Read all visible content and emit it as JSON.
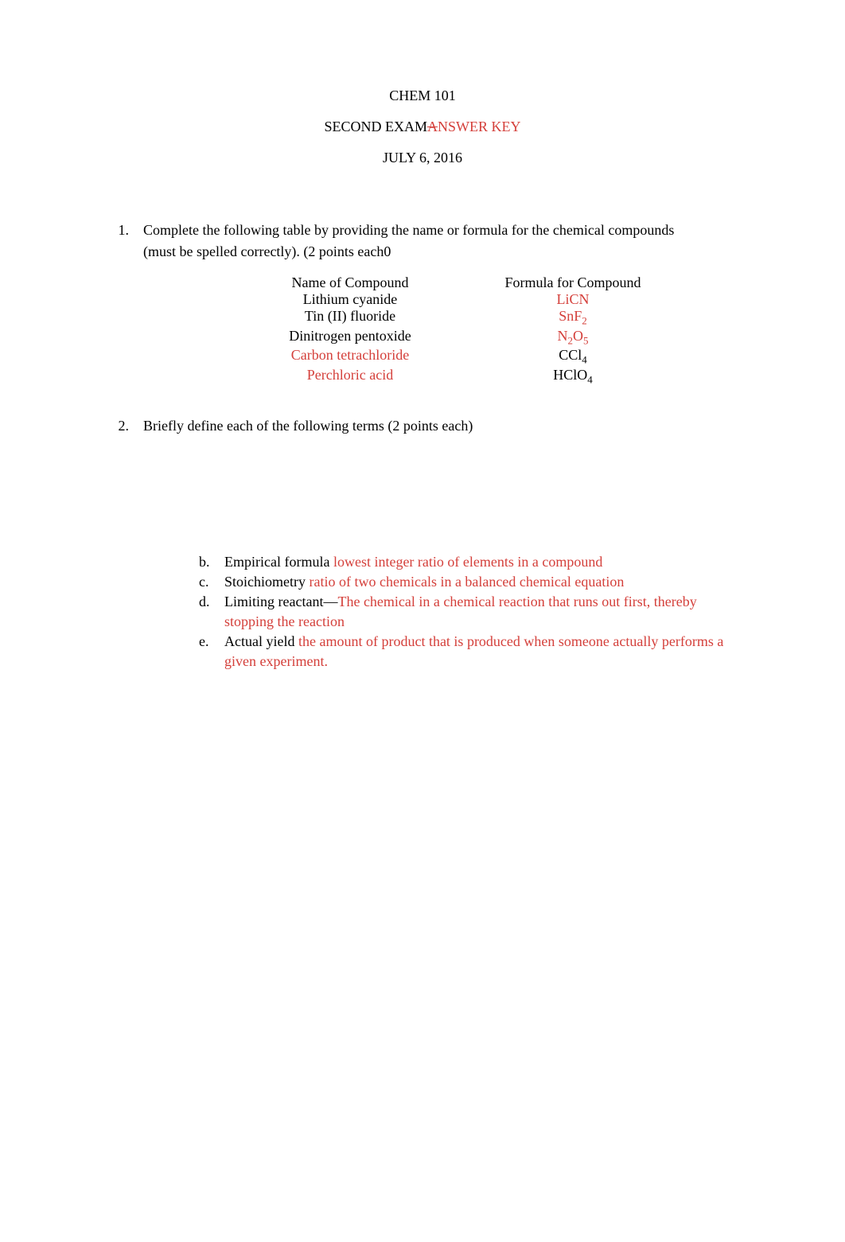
{
  "colors": {
    "text_black": "#000000",
    "text_red": "#d43f3a",
    "background": "#ffffff"
  },
  "typography": {
    "font_family": "Times New Roman",
    "font_size_pt": 13
  },
  "header": {
    "line1": "CHEM 101",
    "line2_part1": "SECOND EXAM",
    "line2_strike": "A",
    "line2_part2": "NSWER KEY",
    "line3": "JULY 6, 2016"
  },
  "q1": {
    "number": "1.",
    "text_line1": "Complete the following table by providing the name or formula for the chemical compounds",
    "text_line2": "(must be spelled correctly).   (2 points each0",
    "table": {
      "header_name": "Name of Compound",
      "header_formula": "Formula for Compound",
      "rows": [
        {
          "name": "Lithium cyanide",
          "name_color": "#000000",
          "formula": "LiCN",
          "formula_color": "#d43f3a",
          "sub": ""
        },
        {
          "name": "Tin (II) fluoride",
          "name_color": "#000000",
          "formula_pre": "SnF",
          "formula_sub": "2",
          "formula_color": "#d43f3a"
        },
        {
          "name": "Dinitrogen pentoxide",
          "name_color": "#000000",
          "formula_n": "N",
          "formula_sub1": "2",
          "formula_o": "O",
          "formula_sub2": "5",
          "formula_color": "#d43f3a"
        },
        {
          "name": "Carbon tetrachloride",
          "name_color": "#d43f3a",
          "formula_pre": "CCl",
          "formula_sub": "4",
          "formula_color": "#000000"
        },
        {
          "name": "Perchloric acid",
          "name_color": "#d43f3a",
          "formula_pre": "HClO",
          "formula_sub": "4",
          "formula_color": "#000000"
        }
      ]
    }
  },
  "q2": {
    "number": "2.",
    "text": "Briefly define each of the following terms  (2 points each)",
    "items": {
      "b": {
        "letter": "b.",
        "term": "Empirical formula ",
        "def": "lowest integer ratio of elements in a compound"
      },
      "c": {
        "letter": "c.",
        "term": "Stoichiometry  ",
        "def": "ratio of two chemicals in a balanced chemical equation"
      },
      "d": {
        "letter": "d.",
        "term": "Limiting reactant—",
        "def1": "The chemical in a chemical reaction that runs out first, thereby",
        "def2": "stopping the reaction"
      },
      "e": {
        "letter": "e.",
        "term": "Actual yield ",
        "def1": "the amount of product that is produced when someone actually performs a",
        "def2": "given experiment."
      }
    }
  }
}
